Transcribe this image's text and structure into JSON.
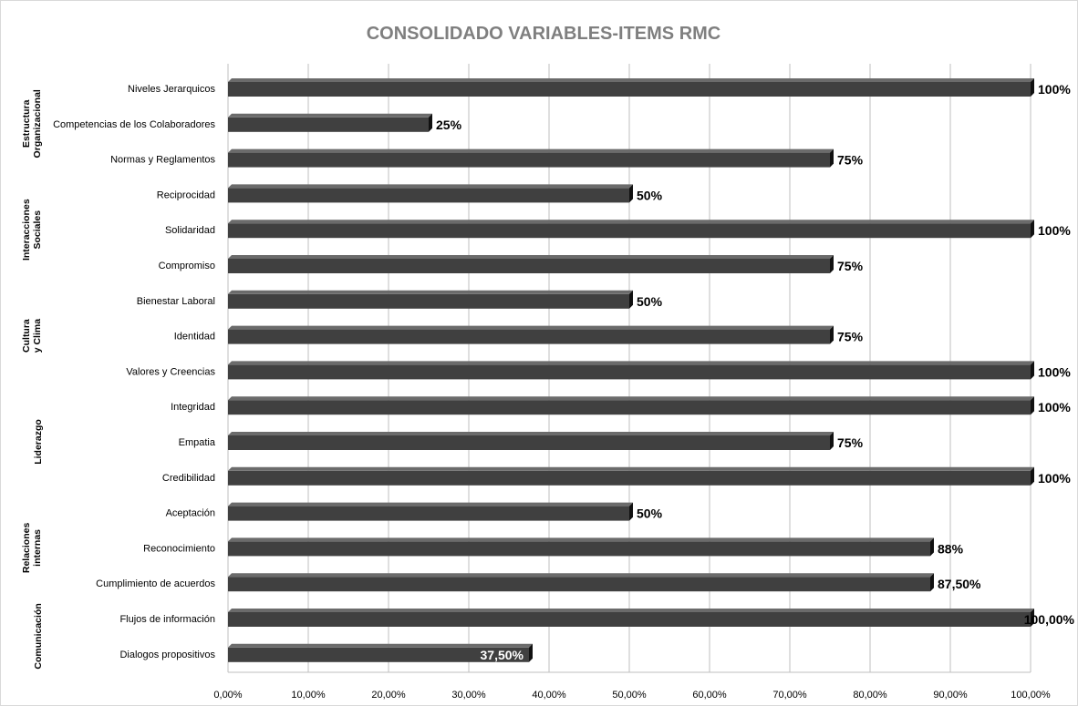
{
  "chart_data": {
    "type": "bar",
    "orientation": "horizontal",
    "title": "CONSOLIDADO VARIABLES-ITEMS RMC",
    "xlabel": "",
    "ylabel": "",
    "xlim": [
      0,
      1
    ],
    "x_ticks": [
      "0,00%",
      "10,00%",
      "20,00%",
      "30,00%",
      "40,00%",
      "50,00%",
      "60,00%",
      "70,00%",
      "80,00%",
      "90,00%",
      "100,00%"
    ],
    "grid": "vertical",
    "bar_color": "#404040",
    "categories": [
      "Niveles Jerarquicos",
      "Competencias de los Colaboradores",
      "Normas y Reglamentos",
      "Reciprocidad",
      "Solidaridad",
      "Compromiso",
      "Bienestar Laboral",
      "Identidad",
      "Valores y Creencias",
      "Integridad",
      "Empatia",
      "Credibilidad",
      "Aceptación",
      "Reconocimiento",
      "Cumplimiento de acuerdos",
      "Flujos de información",
      "Dialogos propositivos"
    ],
    "values": [
      1.0,
      0.25,
      0.75,
      0.5,
      1.0,
      0.75,
      0.5,
      0.75,
      1.0,
      1.0,
      0.75,
      1.0,
      0.5,
      0.875,
      0.875,
      1.0,
      0.375
    ],
    "data_labels": [
      "100%",
      "25%",
      "75%",
      "50%",
      "100%",
      "75%",
      "50%",
      "75%",
      "100%",
      "100%",
      "75%",
      "100%",
      "50%",
      "88%",
      "87,50%",
      "100,00%",
      "37,50%"
    ],
    "groups": [
      {
        "label": "Estructura Organizacional",
        "start": 0,
        "end": 2
      },
      {
        "label": "Interacciones Sociales",
        "start": 3,
        "end": 5
      },
      {
        "label": "Cultura y Clima",
        "start": 6,
        "end": 8
      },
      {
        "label": "Liderazgo",
        "start": 9,
        "end": 11
      },
      {
        "label": "Relaciones internas",
        "start": 12,
        "end": 14
      },
      {
        "label": "Comunicación",
        "start": 15,
        "end": 16
      }
    ]
  }
}
